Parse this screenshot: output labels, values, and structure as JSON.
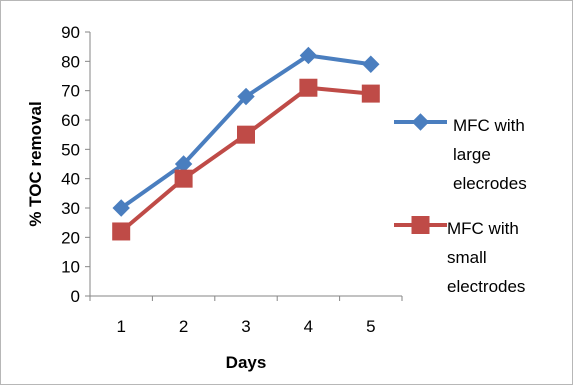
{
  "chart_data": {
    "type": "line",
    "title": "",
    "xlabel": "Days",
    "ylabel": "% TOC removal",
    "x": [
      1,
      2,
      3,
      4,
      5
    ],
    "categories": [
      "1",
      "2",
      "3",
      "4",
      "5"
    ],
    "ylim": [
      0,
      90
    ],
    "yticks": [
      0,
      10,
      20,
      30,
      40,
      50,
      60,
      70,
      80,
      90
    ],
    "grid": false,
    "legend_position": "right",
    "series": [
      {
        "name": "MFC with large elecrodes",
        "legend_lines": [
          "MFC with",
          "large",
          "elecrodes"
        ],
        "values": [
          30,
          45,
          68,
          82,
          79
        ],
        "color": "#4a7ebf",
        "marker": "diamond"
      },
      {
        "name": "MFC with small electrodes",
        "legend_lines": [
          "MFC with",
          "small",
          "electrodes"
        ],
        "values": [
          22,
          40,
          55,
          71,
          69
        ],
        "color": "#bf4b47",
        "marker": "square"
      }
    ]
  }
}
